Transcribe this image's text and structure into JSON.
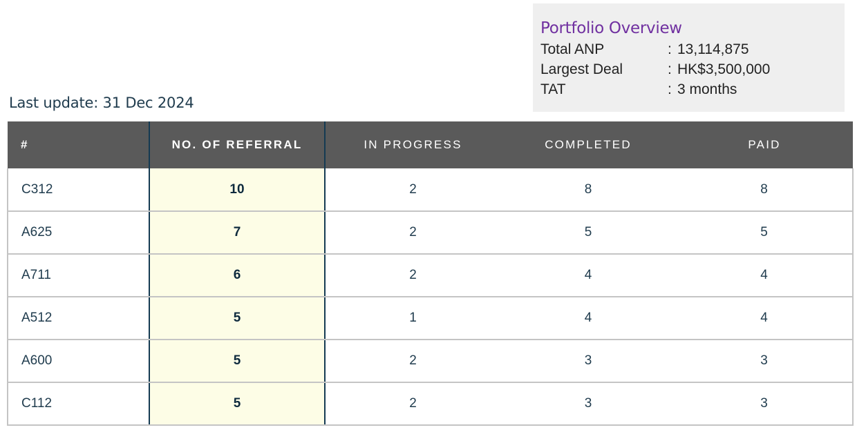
{
  "overview": {
    "title": "Portfolio Overview",
    "rows": [
      {
        "label": "Total ANP",
        "value": "13,114,875"
      },
      {
        "label": "Largest Deal",
        "value": "HK$3,500,000"
      },
      {
        "label": "TAT",
        "value": "3 months"
      }
    ]
  },
  "last_update": "Last update: 31 Dec 2024",
  "table": {
    "headers": [
      "#",
      "NO. OF REFERRAL",
      "IN PROGRESS",
      "COMPLETED",
      "PAID"
    ],
    "rows": [
      {
        "id": "C312",
        "referrals": "10",
        "in_progress": "2",
        "completed": "8",
        "paid": "8"
      },
      {
        "id": "A625",
        "referrals": "7",
        "in_progress": "2",
        "completed": "5",
        "paid": "5"
      },
      {
        "id": "A711",
        "referrals": "6",
        "in_progress": "2",
        "completed": "4",
        "paid": "4"
      },
      {
        "id": "A512",
        "referrals": "5",
        "in_progress": "1",
        "completed": "4",
        "paid": "4"
      },
      {
        "id": "A600",
        "referrals": "5",
        "in_progress": "2",
        "completed": "3",
        "paid": "3"
      },
      {
        "id": "C112",
        "referrals": "5",
        "in_progress": "2",
        "completed": "3",
        "paid": "3"
      }
    ]
  },
  "colors": {
    "overview_title": "#7030a0",
    "header_background": "#5a5a5a",
    "highlight_column": "#fdfde6"
  }
}
